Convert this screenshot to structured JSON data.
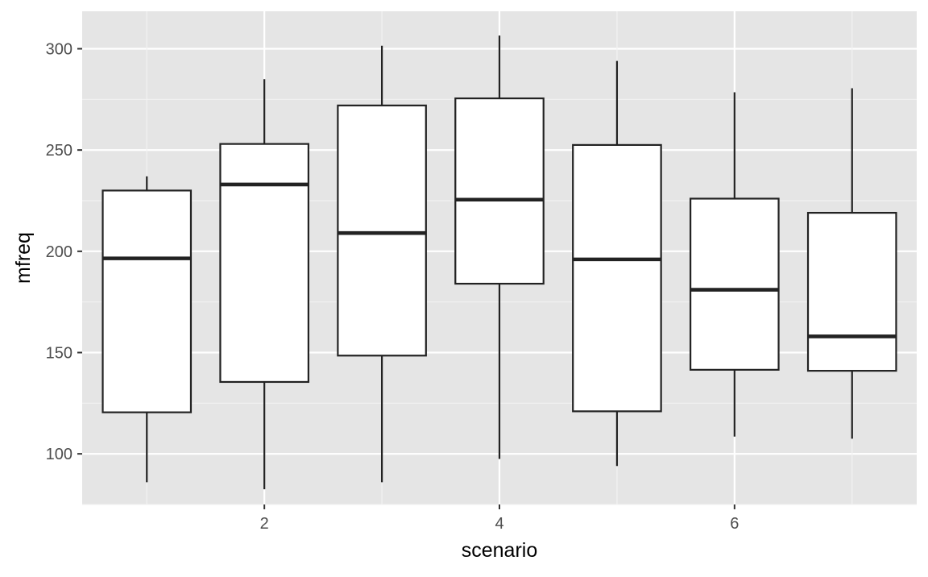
{
  "chart_data": {
    "type": "boxplot",
    "xlabel": "scenario",
    "ylabel": "mfreq",
    "x_ticks": [
      2,
      4,
      6
    ],
    "y_ticks": [
      100,
      150,
      200,
      250,
      300
    ],
    "xlim": [
      0.45,
      7.55
    ],
    "ylim": [
      75,
      318.5
    ],
    "grid": true,
    "legend": "none",
    "boxes": [
      {
        "scenario": 1,
        "whisker_low": 86,
        "q1": 120.5,
        "median": 196.5,
        "q3": 230,
        "whisker_high": 237
      },
      {
        "scenario": 2,
        "whisker_low": 82.5,
        "q1": 135.5,
        "median": 233,
        "q3": 253,
        "whisker_high": 285
      },
      {
        "scenario": 3,
        "whisker_low": 86,
        "q1": 148.5,
        "median": 209,
        "q3": 272,
        "whisker_high": 301.5
      },
      {
        "scenario": 4,
        "whisker_low": 97.5,
        "q1": 184,
        "median": 225.5,
        "q3": 275.5,
        "whisker_high": 306.5
      },
      {
        "scenario": 5,
        "whisker_low": 94,
        "q1": 121,
        "median": 196,
        "q3": 252.5,
        "whisker_high": 294
      },
      {
        "scenario": 6,
        "whisker_low": 108.5,
        "q1": 141.5,
        "median": 181,
        "q3": 226,
        "whisker_high": 278.5
      },
      {
        "scenario": 7,
        "whisker_low": 107.5,
        "q1": 141,
        "median": 158,
        "q3": 219,
        "whisker_high": 280.5
      }
    ],
    "colors": {
      "panel_background": "#e5e5e5",
      "grid_major": "#ffffff",
      "grid_minor": "#f2f2f2",
      "box_fill": "#ffffff",
      "box_line": "#222222",
      "tick_label": "#4d4d4d",
      "axis_title": "#000000",
      "tick_mark": "#333333"
    }
  }
}
